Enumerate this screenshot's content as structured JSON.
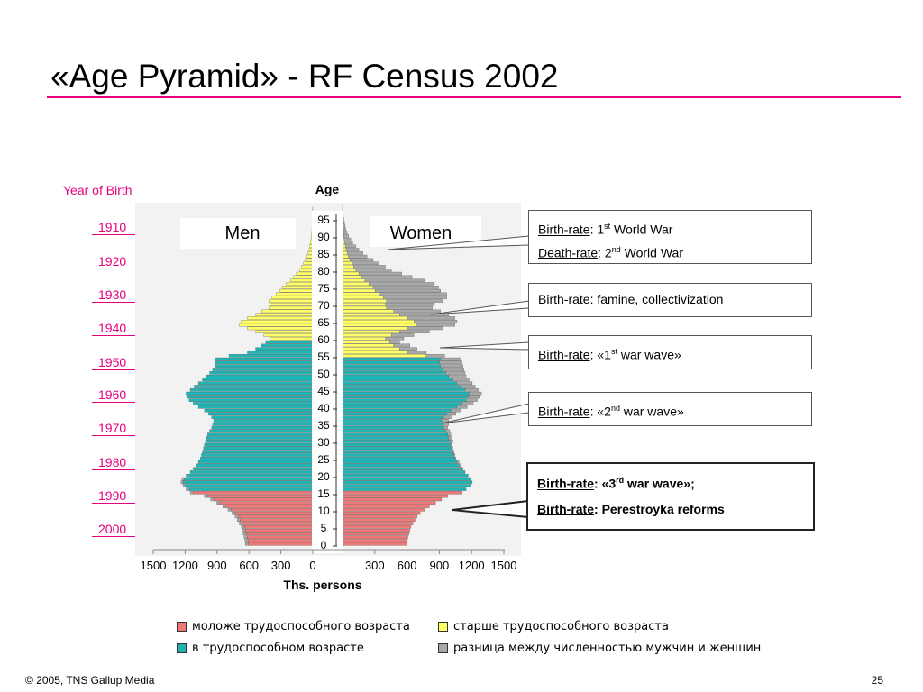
{
  "slide": {
    "title": "«Age Pyramid» - RF Census 2002",
    "footer_left": "© 2005, TNS Gallup Media",
    "footer_right": "25"
  },
  "year_of_birth": {
    "heading": "Year of Birth",
    "years": [
      "1910",
      "1920",
      "1930",
      "1940",
      "1950",
      "1960",
      "1970",
      "1980",
      "1990",
      "2000"
    ]
  },
  "callouts": [
    {
      "lines": [
        {
          "term": "Birth-rate",
          "text_pre": ": 1",
          "sup": "st",
          "text_post": " World War"
        },
        {
          "term": "Death-rate",
          "text_pre": ": 2",
          "sup": "nd",
          "text_post": " World War"
        }
      ]
    },
    {
      "lines": [
        {
          "term": "Birth-rate",
          "text_pre": ": famine, collectivization",
          "sup": "",
          "text_post": ""
        }
      ]
    },
    {
      "lines": [
        {
          "term": "Birth-rate",
          "text_pre": ": «1",
          "sup": "st",
          "text_post": "  war wave»"
        }
      ]
    },
    {
      "lines": [
        {
          "term": "Birth-rate",
          "text_pre": ": «2",
          "sup": "nd",
          "text_post": "  war wave»"
        }
      ]
    },
    {
      "lines": [
        {
          "term": "Birth-rate",
          "text_pre": ": «3",
          "sup": "rd",
          "text_post": "  war wave»;"
        },
        {
          "term": "Birth-rate",
          "text_pre": ":  Perestroyka  reforms",
          "sup": "",
          "text_post": ""
        }
      ]
    }
  ],
  "legend": [
    {
      "label": "моложе трудоспособного возраста",
      "color": "#f07878"
    },
    {
      "label": "старше трудоспособного возраста",
      "color": "#ffff66"
    },
    {
      "label": "в трудоспособном возрасте",
      "color": "#1fb5b5"
    },
    {
      "label": "разница между численностью мужчин и женщин",
      "color": "#a8a8a8"
    }
  ],
  "colors": {
    "young": "#f07878",
    "working": "#1fb5b5",
    "old": "#ffff66",
    "difference": "#a8a8a8",
    "accent": "#e6007e"
  },
  "chart_data": {
    "type": "bar",
    "orientation": "horizontal-pyramid",
    "title": "",
    "left_series_name": "Men",
    "right_series_name": "Women",
    "age_axis_label": "Age",
    "xlabel": "Ths. persons",
    "xlim": [
      -1500,
      1500
    ],
    "x_ticks": [
      "1500",
      "1200",
      "900",
      "600",
      "300",
      "0",
      "300",
      "600",
      "900",
      "1200",
      "1500"
    ],
    "age_ticks": [
      "0",
      "5",
      "10",
      "15",
      "20",
      "25",
      "30",
      "35",
      "40",
      "45",
      "50",
      "55",
      "60",
      "65",
      "70",
      "75",
      "80",
      "85",
      "90",
      "95"
    ],
    "working_age_ranges": {
      "men": [
        16,
        59
      ],
      "women": [
        16,
        54
      ]
    },
    "age_groups": [
      {
        "ages": [
          0,
          4
        ],
        "men": [
          660,
          665,
          672,
          680,
          690
        ],
        "women": [
          630,
          635,
          640,
          650,
          660
        ]
      },
      {
        "ages": [
          5,
          9
        ],
        "men": [
          700,
          720,
          740,
          760,
          790
        ],
        "women": [
          670,
          690,
          710,
          730,
          760
        ]
      },
      {
        "ages": [
          10,
          14
        ],
        "men": [
          830,
          880,
          940,
          1000,
          1060
        ],
        "women": [
          800,
          850,
          910,
          970,
          1030
        ]
      },
      {
        "ages": [
          15,
          19
        ],
        "men": [
          1200,
          1240,
          1270,
          1290,
          1280
        ],
        "women": [
          1170,
          1210,
          1250,
          1270,
          1260
        ]
      },
      {
        "ages": [
          20,
          24
        ],
        "men": [
          1240,
          1200,
          1170,
          1140,
          1120
        ],
        "women": [
          1230,
          1200,
          1180,
          1160,
          1140
        ]
      },
      {
        "ages": [
          25,
          29
        ],
        "men": [
          1100,
          1090,
          1080,
          1070,
          1060
        ],
        "women": [
          1110,
          1100,
          1090,
          1080,
          1070
        ]
      },
      {
        "ages": [
          30,
          34
        ],
        "men": [
          1050,
          1040,
          1030,
          1010,
          990
        ],
        "women": [
          1080,
          1070,
          1060,
          1050,
          1030
        ]
      },
      {
        "ages": [
          35,
          39
        ],
        "men": [
          980,
          970,
          990,
          1020,
          1060
        ],
        "women": [
          1040,
          1040,
          1070,
          1110,
          1160
        ]
      },
      {
        "ages": [
          40,
          44
        ],
        "men": [
          1120,
          1170,
          1210,
          1230,
          1240
        ],
        "women": [
          1220,
          1280,
          1320,
          1340,
          1360
        ]
      },
      {
        "ages": [
          45,
          49
        ],
        "men": [
          1200,
          1160,
          1120,
          1080,
          1040
        ],
        "women": [
          1330,
          1300,
          1270,
          1240,
          1210
        ]
      },
      {
        "ages": [
          50,
          54
        ],
        "men": [
          1010,
          980,
          960,
          950,
          960
        ],
        "women": [
          1200,
          1190,
          1180,
          1170,
          1160
        ]
      },
      {
        "ages": [
          55,
          59
        ],
        "men": [
          820,
          640,
          560,
          500,
          460
        ],
        "women": [
          1000,
          820,
          730,
          660,
          560
        ]
      },
      {
        "ages": [
          60,
          64
        ],
        "men": [
          420,
          480,
          560,
          640,
          720
        ],
        "women": [
          600,
          700,
          850,
          980,
          1100
        ]
      },
      {
        "ages": [
          65,
          69
        ],
        "men": [
          700,
          640,
          560,
          500,
          430
        ],
        "women": [
          1120,
          1100,
          1040,
          960,
          880
        ]
      },
      {
        "ages": [
          70,
          74
        ],
        "men": [
          420,
          430,
          400,
          360,
          320
        ],
        "women": [
          900,
          980,
          1020,
          1020,
          960
        ]
      },
      {
        "ages": [
          75,
          79
        ],
        "men": [
          300,
          260,
          220,
          190,
          160
        ],
        "women": [
          940,
          900,
          800,
          680,
          580
        ]
      },
      {
        "ages": [
          80,
          84
        ],
        "men": [
          130,
          110,
          90,
          72,
          58
        ],
        "women": [
          480,
          420,
          360,
          300,
          240
        ]
      },
      {
        "ages": [
          85,
          89
        ],
        "men": [
          46,
          36,
          28,
          22,
          17
        ],
        "women": [
          200,
          160,
          130,
          100,
          80
        ]
      },
      {
        "ages": [
          90,
          94
        ],
        "men": [
          13,
          10,
          8,
          6,
          4
        ],
        "women": [
          60,
          45,
          34,
          26,
          18
        ]
      },
      {
        "ages": [
          95,
          99
        ],
        "men": [
          3,
          2,
          1,
          1,
          0
        ],
        "women": [
          12,
          8,
          5,
          3,
          2
        ]
      }
    ]
  }
}
